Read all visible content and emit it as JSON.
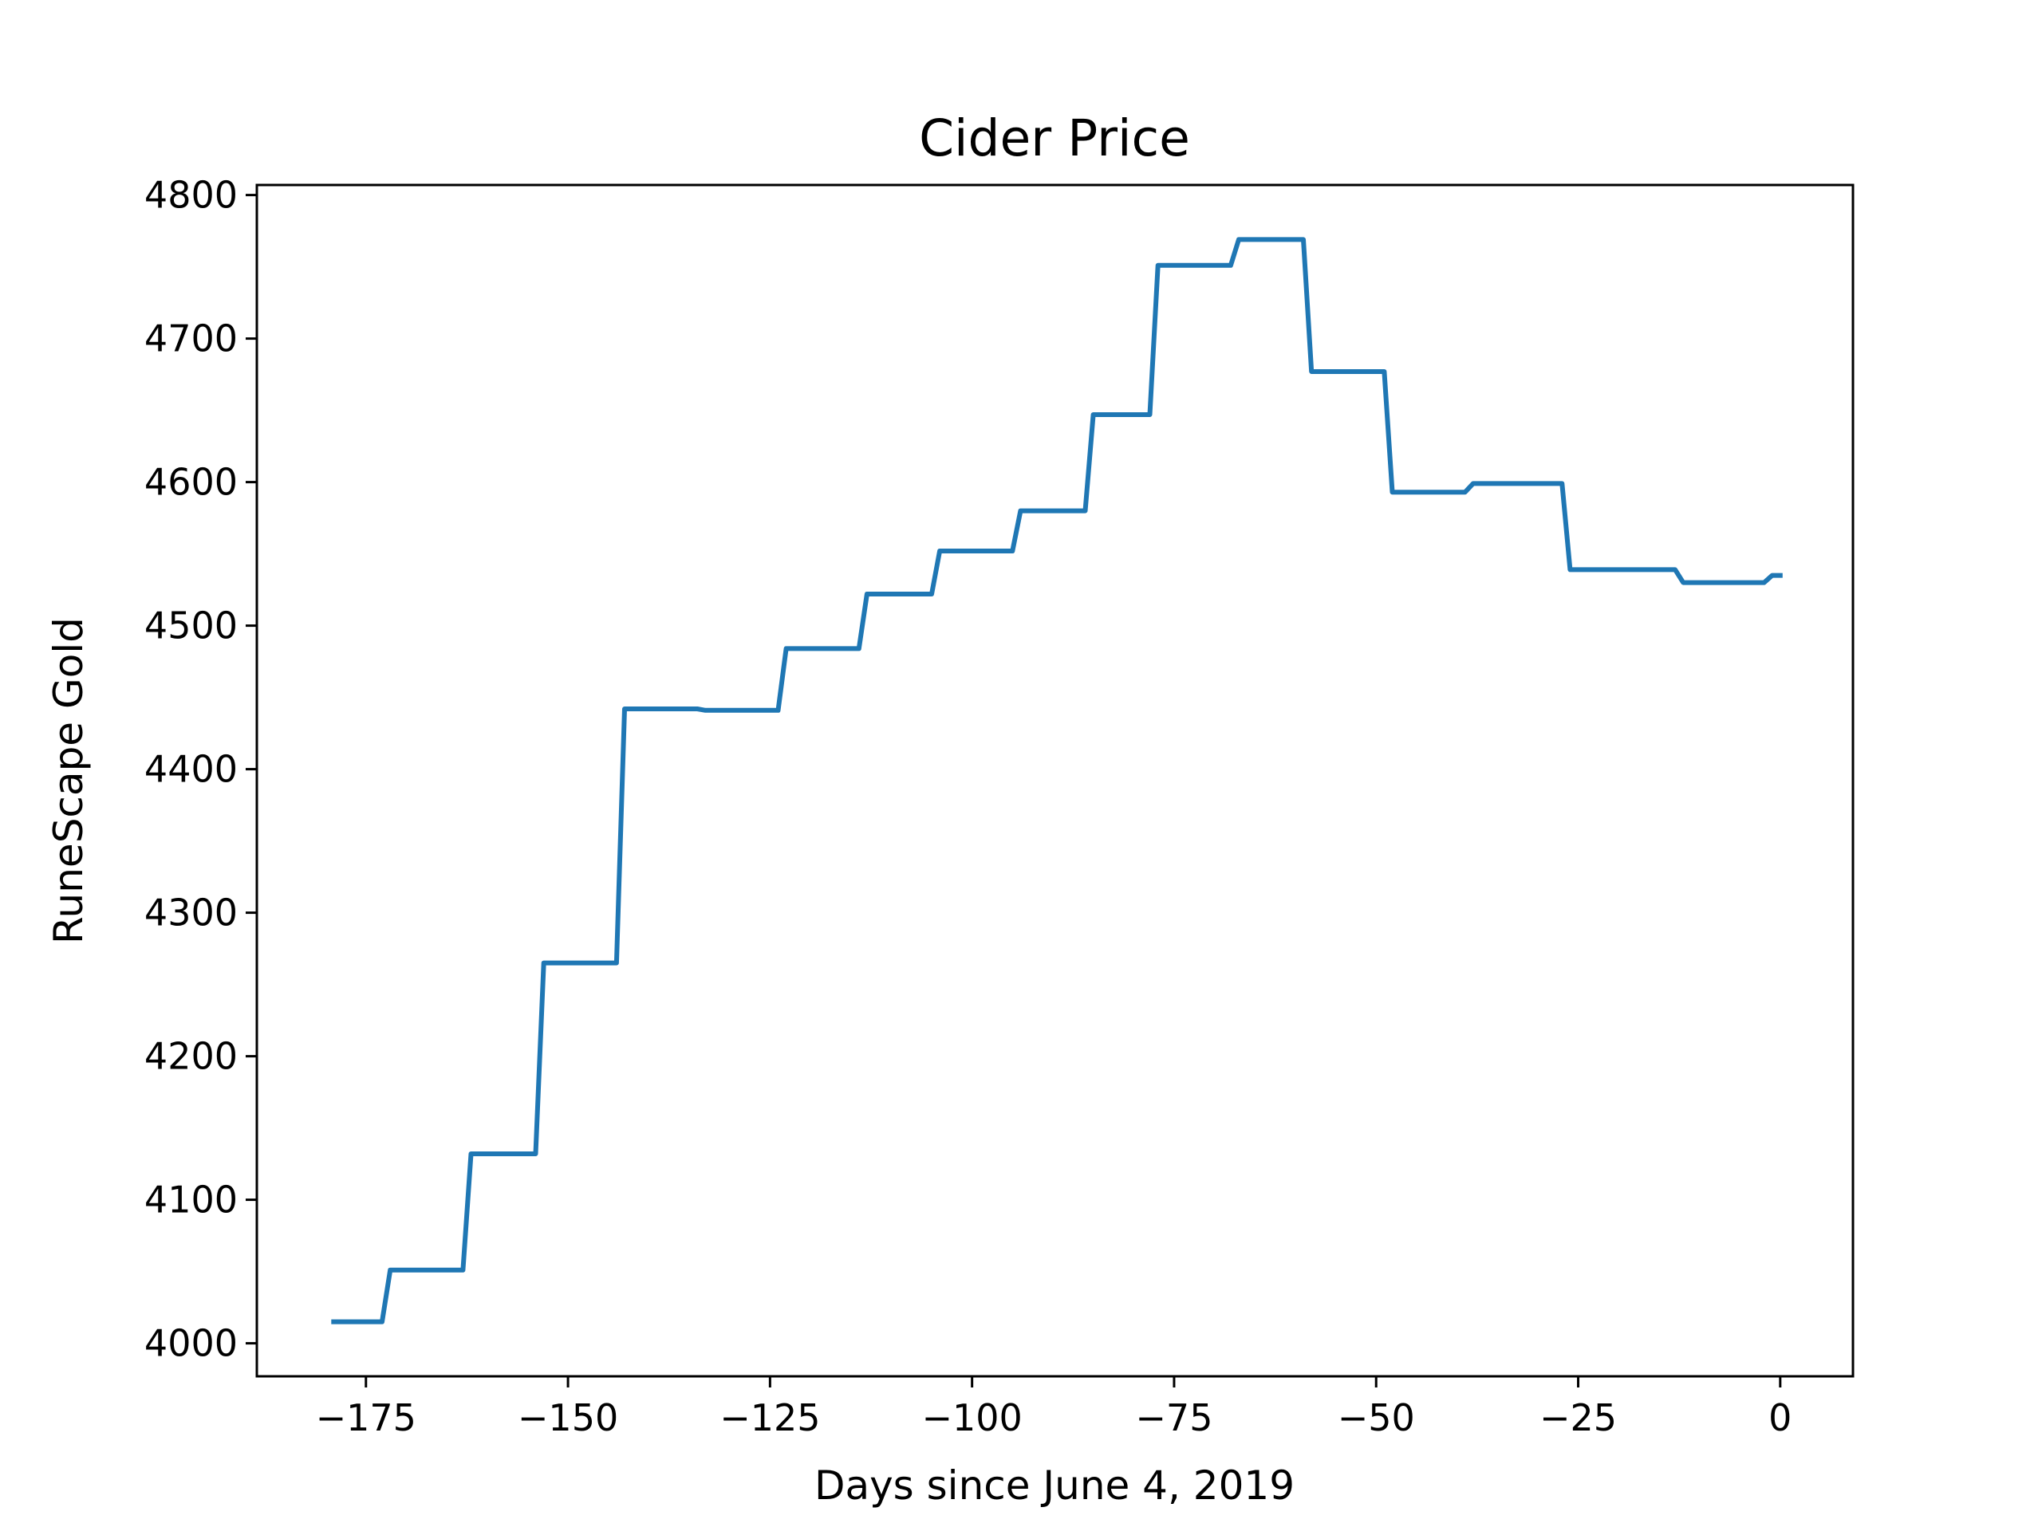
{
  "chart_data": {
    "type": "line",
    "title": "Cider Price",
    "xlabel": "Days since June 4, 2019",
    "ylabel": "RuneScape Gold",
    "xlim": [
      -188.5,
      9
    ],
    "ylim": [
      3977,
      4807
    ],
    "grid": false,
    "xticks": [
      -175,
      -150,
      -125,
      -100,
      -75,
      -50,
      -25,
      0
    ],
    "yticks": [
      4000,
      4100,
      4200,
      4300,
      4400,
      4500,
      4600,
      4700,
      4800
    ],
    "xtick_labels": [
      "−175",
      "−150",
      "−125",
      "−100",
      "−75",
      "−50",
      "−25",
      "0"
    ],
    "ytick_labels": [
      "4000",
      "4100",
      "4200",
      "4300",
      "4400",
      "4500",
      "4600",
      "4700",
      "4800"
    ],
    "series": [
      {
        "color": "#1f77b4",
        "x": [
          -179,
          -173,
          -172,
          -163,
          -162,
          -154,
          -153,
          -144,
          -143,
          -134,
          -133,
          -124,
          -123,
          -114,
          -113,
          -105,
          -104,
          -95,
          -94,
          -86,
          -85,
          -78,
          -77,
          -68,
          -67,
          -59,
          -58,
          -49,
          -48,
          -39,
          -38,
          -27,
          -26,
          -13,
          -12,
          -2,
          -1,
          0
        ],
        "y": [
          4015,
          4015,
          4051,
          4051,
          4132,
          4132,
          4265,
          4265,
          4442,
          4442,
          4441,
          4441,
          4484,
          4484,
          4522,
          4522,
          4552,
          4552,
          4580,
          4580,
          4647,
          4647,
          4751,
          4751,
          4769,
          4769,
          4677,
          4677,
          4593,
          4593,
          4599,
          4599,
          4539,
          4539,
          4530,
          4530,
          4535,
          4535
        ]
      }
    ]
  }
}
